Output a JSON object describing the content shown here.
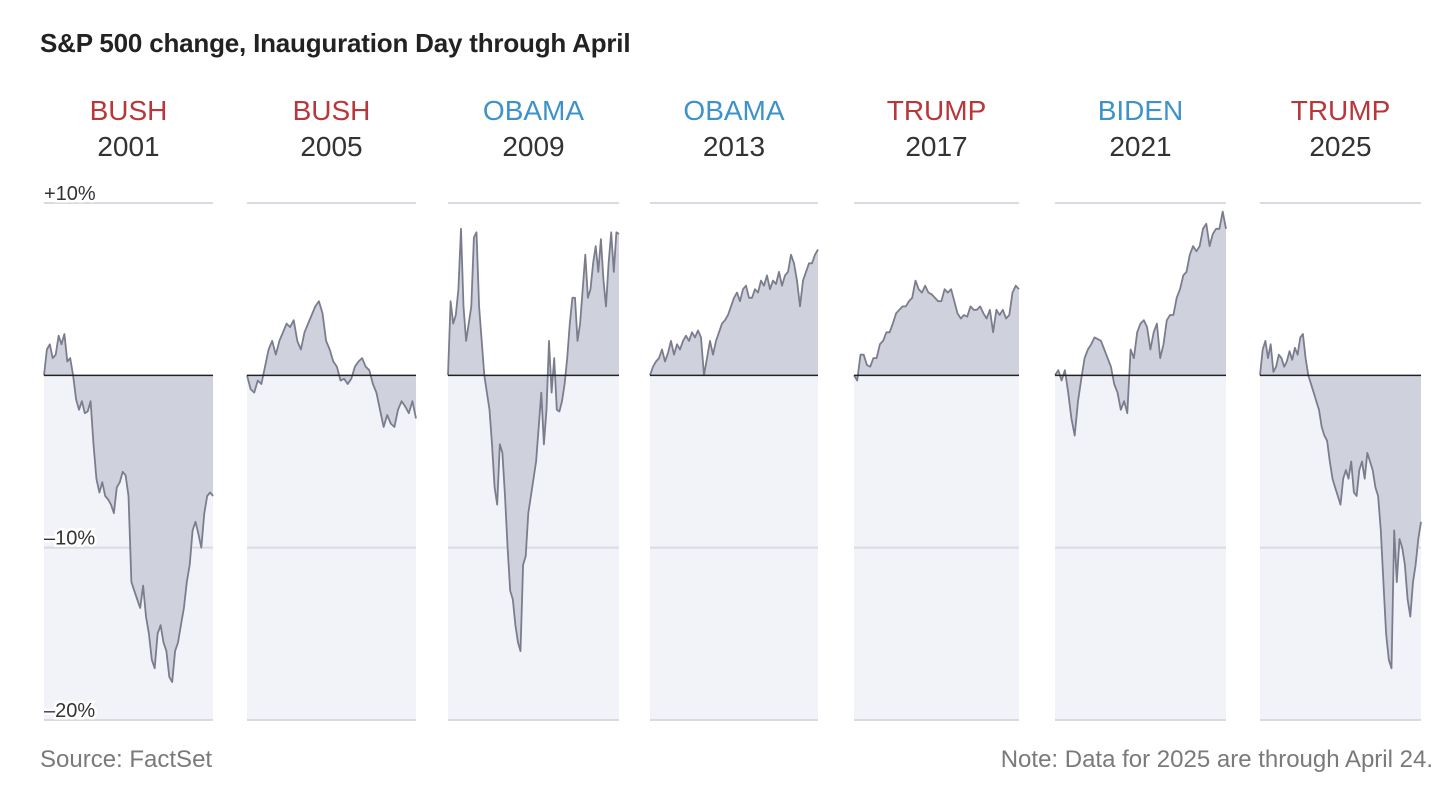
{
  "chart_data": {
    "type": "area",
    "title": "S&P 500 change, Inauguration Day through April",
    "y_unit": "percent change",
    "ylim": [
      -20,
      10
    ],
    "y_ticks": [
      {
        "value": 10,
        "label": "+10%"
      },
      {
        "value": -10,
        "label": "–10%"
      },
      {
        "value": -20,
        "label": "–20%"
      }
    ],
    "colors": {
      "republican": "#b8373a",
      "democrat": "#3d93c9",
      "year": "#333333",
      "line": "#7b7d8e",
      "area": "#cfd2dd",
      "panel_bg": "#f2f3f8",
      "gridline": "#d9dbe3",
      "zero_line": "#222222"
    },
    "series": [
      {
        "president": "BUSH",
        "year": "2001",
        "party": "republican",
        "values": [
          0,
          1.5,
          1.8,
          1,
          1.2,
          2.3,
          1.8,
          2.4,
          0.8,
          1,
          0,
          -1.4,
          -2,
          -1.5,
          -2.2,
          -2.1,
          -1.5,
          -4,
          -6,
          -6.8,
          -6.2,
          -7,
          -7.2,
          -7.5,
          -8,
          -6.5,
          -6.2,
          -5.6,
          -5.8,
          -7,
          -12,
          -12.5,
          -13,
          -13.5,
          -12.2,
          -14,
          -15,
          -16.5,
          -17,
          -15,
          -14.5,
          -15.5,
          -16,
          -17.5,
          -17.8,
          -16,
          -15.5,
          -14.5,
          -13.5,
          -12,
          -11,
          -9,
          -8.5,
          -9.2,
          -10,
          -8,
          -7,
          -6.8,
          -7
        ]
      },
      {
        "president": "BUSH",
        "year": "2005",
        "party": "republican",
        "values": [
          0,
          -0.8,
          -1,
          -0.3,
          -0.5,
          0.5,
          1.5,
          2,
          1.2,
          2,
          2.5,
          3,
          2.8,
          3.2,
          2,
          1.5,
          2.5,
          3,
          3.5,
          4,
          4.3,
          3.6,
          2,
          1.5,
          0.8,
          0.5,
          -0.3,
          -0.2,
          -0.5,
          -0.2,
          0.5,
          0.8,
          1,
          0.5,
          0.3,
          -0.5,
          -1,
          -2,
          -3,
          -2.3,
          -2.8,
          -3,
          -2,
          -1.5,
          -1.8,
          -2.2,
          -1.5,
          -2.5
        ]
      },
      {
        "president": "OBAMA",
        "year": "2009",
        "party": "democrat",
        "values": [
          0,
          4.3,
          3,
          3.5,
          5,
          8.5,
          4,
          2,
          3,
          4,
          8,
          8.3,
          4,
          2,
          0,
          -1,
          -2,
          -4,
          -6.5,
          -7.5,
          -4,
          -4.5,
          -7,
          -10,
          -12.5,
          -13,
          -14.5,
          -15.5,
          -16,
          -11,
          -10.5,
          -8,
          -7,
          -6,
          -5,
          -3,
          -1,
          -4,
          -2,
          2,
          -1,
          1,
          -2,
          -2.1,
          -1.5,
          -0.5,
          1,
          3,
          4.5,
          4.5,
          2,
          3,
          5,
          7,
          4.5,
          5,
          6.5,
          7.5,
          6,
          7.9,
          5.5,
          4,
          6.5,
          8.3,
          6,
          8.3,
          8.2
        ]
      },
      {
        "president": "OBAMA",
        "year": "2013",
        "party": "democrat",
        "values": [
          0,
          0.5,
          0.8,
          1,
          1.5,
          0.8,
          1.3,
          2,
          1.2,
          1.8,
          1.5,
          2,
          2.3,
          2,
          2.5,
          2.2,
          2.6,
          2.2,
          0,
          1,
          2,
          1.2,
          2,
          2.5,
          3,
          3.2,
          3.5,
          4,
          4.5,
          4.8,
          4.3,
          5,
          5.2,
          4.5,
          4.5,
          5,
          4.8,
          5.5,
          5.2,
          5.8,
          5,
          5.5,
          5.3,
          6,
          5.2,
          5.8,
          6,
          7,
          6.5,
          5.5,
          4,
          5.5,
          6,
          6.5,
          6.5,
          7,
          7.3
        ]
      },
      {
        "president": "TRUMP",
        "year": "2017",
        "party": "republican",
        "values": [
          0,
          -0.3,
          1.2,
          1.2,
          0.6,
          0.5,
          1,
          1,
          1.8,
          2,
          2.5,
          2.5,
          3,
          3.6,
          3.8,
          4,
          4,
          4.3,
          4.5,
          5.5,
          5,
          4.8,
          5.2,
          4.8,
          4.7,
          4.5,
          4.3,
          4.3,
          5,
          4.8,
          5,
          4.3,
          3.6,
          3.3,
          3.5,
          3.4,
          4,
          3.8,
          3.8,
          4,
          3.6,
          3.3,
          3.8,
          2.5,
          3.8,
          3.5,
          3.8,
          3.3,
          3.5,
          4.8,
          5.2,
          5
        ]
      },
      {
        "president": "BIDEN",
        "year": "2021",
        "party": "democrat",
        "values": [
          0,
          0.3,
          -0.3,
          0.3,
          -1,
          -2.5,
          -3.5,
          -1.5,
          -0.2,
          1,
          1.5,
          1.8,
          2.2,
          2.1,
          2,
          1.5,
          1,
          0.5,
          -0.5,
          -1,
          -2,
          -1.5,
          -2.2,
          1.5,
          1,
          2.5,
          3,
          3.2,
          2.8,
          1.5,
          2.5,
          3,
          1,
          1.8,
          3.2,
          3.5,
          3.5,
          4.5,
          5,
          5.8,
          6,
          7,
          7.5,
          7.2,
          7.5,
          8.5,
          8.8,
          7.5,
          8.2,
          8.5,
          8.5,
          9.5,
          8.5
        ]
      },
      {
        "president": "TRUMP",
        "year": "2025",
        "party": "republican",
        "values": [
          0,
          1.5,
          2,
          1,
          1.8,
          0.2,
          0.5,
          1.2,
          1,
          0.5,
          0.8,
          1.4,
          0.9,
          1.6,
          1.2,
          2.2,
          2.4,
          1,
          0,
          -0.5,
          -1,
          -1.5,
          -2,
          -3,
          -3.5,
          -3.8,
          -5,
          -6,
          -6.5,
          -7,
          -7.5,
          -6,
          -5.5,
          -6,
          -5,
          -6.8,
          -7,
          -5.5,
          -5,
          -6,
          -4.5,
          -5,
          -5.5,
          -6.5,
          -7,
          -9,
          -12,
          -15,
          -16.5,
          -17,
          -9,
          -12,
          -9.5,
          -10,
          -11,
          -13,
          -14,
          -12,
          -11,
          -9.5,
          -8.5
        ]
      }
    ]
  },
  "footer": {
    "source": "Source: FactSet",
    "note": "Note: Data for 2025 are through April 24."
  }
}
